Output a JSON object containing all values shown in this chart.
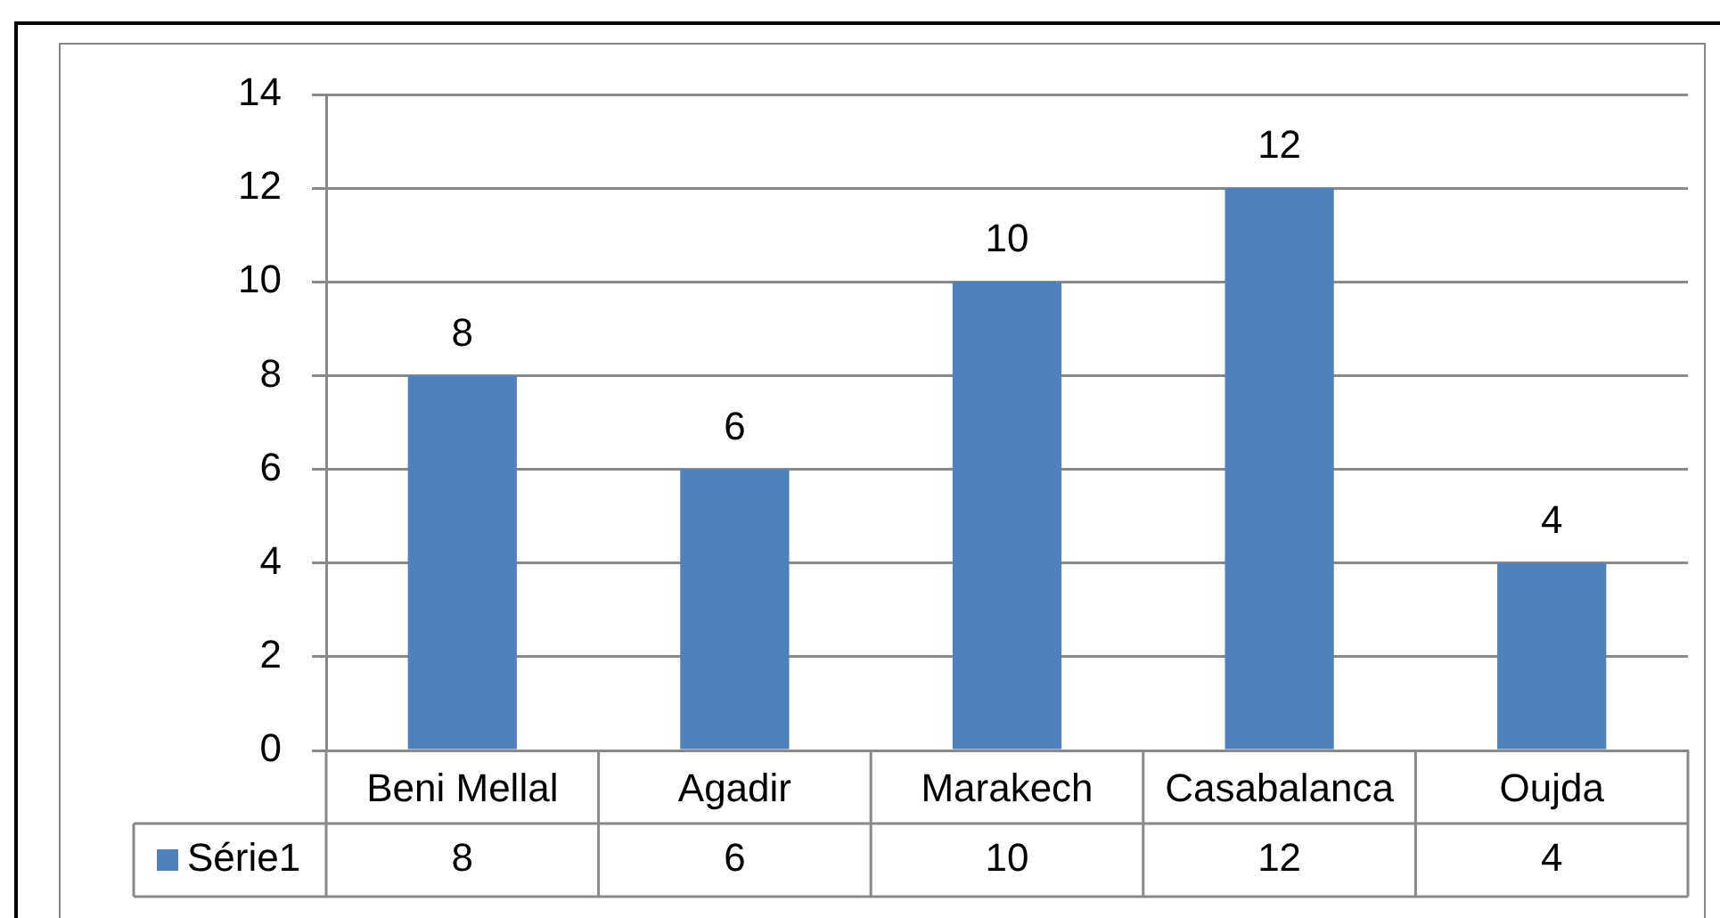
{
  "chart_data": {
    "type": "bar",
    "categories": [
      "Beni Mellal",
      "Agadir",
      "Marakech",
      "Casabalanca",
      "Oujda"
    ],
    "series": [
      {
        "name": "Série1",
        "color": "#4f81bd",
        "values": [
          8,
          6,
          10,
          12,
          4
        ]
      }
    ],
    "ylim": [
      0,
      14
    ],
    "yticks": [
      0,
      2,
      4,
      6,
      8,
      10,
      12,
      14
    ],
    "grid": "y",
    "legend": "bottom left",
    "data_labels": true,
    "annotations": [
      {
        "text": "8",
        "x": "Beni Mellal",
        "y": 8
      },
      {
        "text": "6",
        "x": "Agadir",
        "y": 6
      },
      {
        "text": "10",
        "x": "Marakech",
        "y": 10
      },
      {
        "text": "12",
        "x": "Casabalanca",
        "y": 12
      },
      {
        "text": "4",
        "x": "Oujda",
        "y": 4
      }
    ]
  }
}
